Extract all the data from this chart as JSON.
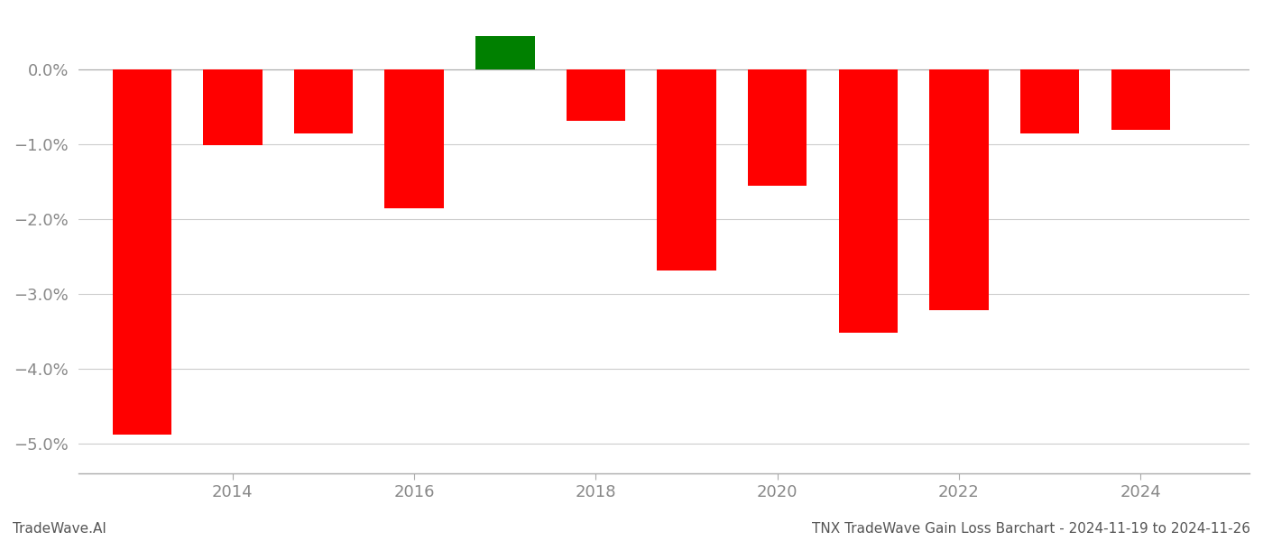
{
  "years": [
    2013,
    2014,
    2015,
    2016,
    2017,
    2018,
    2019,
    2020,
    2021,
    2022,
    2023,
    2024
  ],
  "values": [
    -4.88,
    -1.01,
    -0.85,
    -1.85,
    0.45,
    -0.68,
    -2.68,
    -1.55,
    -3.52,
    -3.22,
    -0.85,
    -0.8
  ],
  "bar_colors": [
    "#ff0000",
    "#ff0000",
    "#ff0000",
    "#ff0000",
    "#008000",
    "#ff0000",
    "#ff0000",
    "#ff0000",
    "#ff0000",
    "#ff0000",
    "#ff0000",
    "#ff0000"
  ],
  "ylim": [
    -5.4,
    0.75
  ],
  "yticks": [
    0.0,
    -1.0,
    -2.0,
    -3.0,
    -4.0,
    -5.0
  ],
  "xtick_positions": [
    2014,
    2016,
    2018,
    2020,
    2022,
    2024
  ],
  "xtick_labels": [
    "2014",
    "2016",
    "2018",
    "2020",
    "2022",
    "2024"
  ],
  "xlim_left": 2012.3,
  "xlim_right": 2025.2,
  "footer_left": "TradeWave.AI",
  "footer_right": "TNX TradeWave Gain Loss Barchart - 2024-11-19 to 2024-11-26",
  "background_color": "#ffffff",
  "bar_width": 0.65,
  "grid_color": "#cccccc",
  "tick_color": "#888888",
  "tick_fontsize": 13,
  "footer_fontsize": 11
}
